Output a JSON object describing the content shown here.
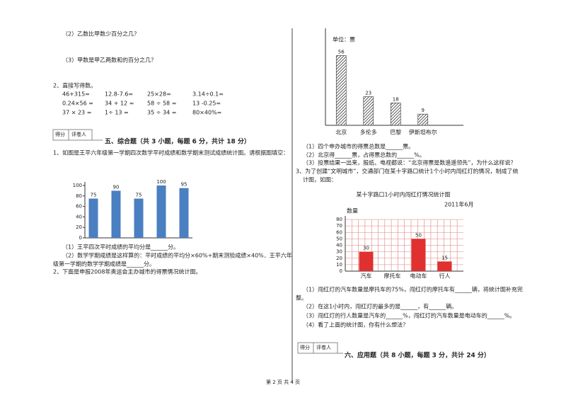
{
  "left": {
    "q2": "（2）乙数比甲数少百分之几？",
    "q3": "（3）甲数是甲乙两数和的百分之几？",
    "section2": "2、直接写得数。",
    "arith": [
      [
        "46+315=",
        "12.8-7.6=",
        "25×28=",
        "3.14÷0.1="
      ],
      [
        "0.24×56 =",
        "34 + 12 =",
        "58 ÷ 58 =",
        "13 -0.25="
      ],
      [
        "37 × 23 =",
        "1÷ 13 =",
        "35 ÷ 34 =",
        "80×40%="
      ]
    ],
    "score_box": {
      "score": "得分",
      "grader": "评卷人"
    },
    "section5_title": "五、综合题（共 3 小题，每题 6 分，共计 18 分）",
    "q1_intro": "1、如图是王平六年级第一学期四次数学平时成绩和数学期末测试成绩统计图。请根据图填空：",
    "q1_sub1": "（1）王平四次平时成绩的平均分是______分。",
    "q1_sub2a": "（2）数学学期成绩是这样算的：平时成绩的平均分×60%+期末测验成绩×40%．王平六年",
    "q1_sub2b": "级第一学期的数学学期成绩是______分。",
    "q2_intro": "2、下面是申报2008年奥运会主办城市的得票情况统计图。"
  },
  "chart1": {
    "type": "bar",
    "values": [
      75,
      90,
      75,
      100,
      95
    ],
    "color": "#4a7fc1",
    "ylim": [
      0,
      100
    ],
    "yticks": [
      0,
      20,
      40,
      60,
      80,
      100
    ]
  },
  "chart2": {
    "type": "bar",
    "unit_label": "单位：票",
    "categories": [
      "北京",
      "多伦多",
      "巴黎",
      "伊斯坦布尔"
    ],
    "values": [
      56,
      23,
      18,
      9
    ],
    "color": "#555555",
    "ylim": [
      0,
      75
    ]
  },
  "right": {
    "c2_q1": "（1）四个申办城市的得票总数是______票。",
    "c2_q2": "（2）北京得______票，占得票总数的______%。",
    "c2_q3": "（3）投票结果一出来，报纸、电视都说：“北京得票是数遥遥领先”，为什么这样说？",
    "q3_intro_a": "3、为了创建“文明城市”，交通部门在某十字路口统计1个小时内闯红灯的情况，制成了统",
    "q3_intro_b": "计图，如图：",
    "c3_q1a": "（1）闯红灯的汽车数量是摩托车的75%，闯红灯的摩托车有______辆，将统计图补充完",
    "c3_q1b": "整。",
    "c3_q2": "（2）在这1小时内，闯红灯的最多的是______，有______辆。",
    "c3_q3": "（3）闯红灯的行人数量是汽车的______%，闯红灯的汽车数量是电动车的______%。",
    "c3_q4": "（4）看了上面的统计图，你有什么想法？",
    "score_box": {
      "score": "得分",
      "grader": "评卷人"
    },
    "section6_title": "六、应用题（共 8 小题，每题 3 分，共计 24 分）"
  },
  "chart3": {
    "type": "bar",
    "title": "某十字路口1小时内闯红灯情况统计图",
    "subtitle": "2011年6月",
    "y_label": "数量",
    "categories": [
      "汽车",
      "摩托车",
      "电动车",
      "行人"
    ],
    "values": [
      30,
      null,
      50,
      15
    ],
    "color": "#e03030",
    "ylim": [
      0,
      80
    ],
    "yticks": [
      0,
      10,
      20,
      30,
      40,
      50,
      60,
      70,
      80
    ],
    "grid": true
  },
  "footer": "第 2 页 共 4 页"
}
